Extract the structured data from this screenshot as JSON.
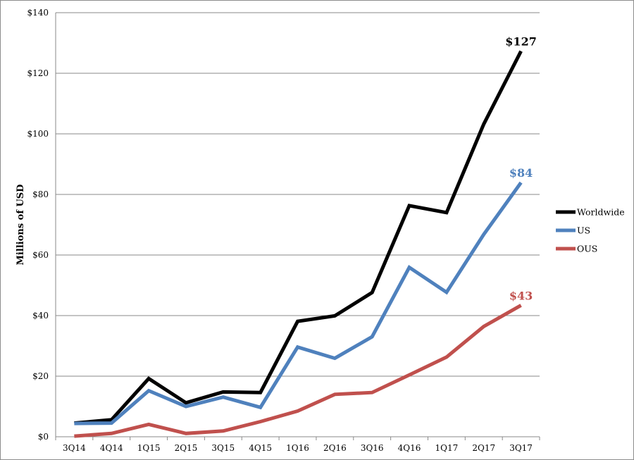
{
  "chart_data": {
    "type": "line",
    "title": "",
    "xlabel": "",
    "ylabel": "Millions of USD",
    "categories": [
      "3Q14",
      "4Q14",
      "1Q15",
      "2Q15",
      "3Q15",
      "4Q15",
      "1Q16",
      "2Q16",
      "3Q16",
      "4Q16",
      "1Q17",
      "2Q17",
      "3Q17"
    ],
    "ylim": [
      0,
      140
    ],
    "yticks": [
      0,
      20,
      40,
      60,
      80,
      100,
      120,
      140
    ],
    "ytick_labels": [
      "$0",
      "$20",
      "$40",
      "$60",
      "$80",
      "$100",
      "$120",
      "$140"
    ],
    "grid": true,
    "legend_position": "right",
    "series": [
      {
        "name": "Worldwide",
        "color": "#000000",
        "end_label": "$127",
        "values": [
          4.5,
          5.6,
          19.2,
          11.2,
          14.8,
          14.6,
          38.1,
          39.9,
          47.6,
          76.3,
          74.0,
          103.2,
          127.3
        ]
      },
      {
        "name": "US",
        "color": "#4f81bd",
        "end_label": "$84",
        "values": [
          4.4,
          4.5,
          15.2,
          10.0,
          13.1,
          9.7,
          29.6,
          25.9,
          33.0,
          55.9,
          47.7,
          66.8,
          83.9
        ]
      },
      {
        "name": "OUS",
        "color": "#c0504d",
        "end_label": "$43",
        "values": [
          0.2,
          1.1,
          4.1,
          1.1,
          1.9,
          5.0,
          8.5,
          14.0,
          14.6,
          20.4,
          26.3,
          36.4,
          43.4
        ]
      }
    ]
  }
}
